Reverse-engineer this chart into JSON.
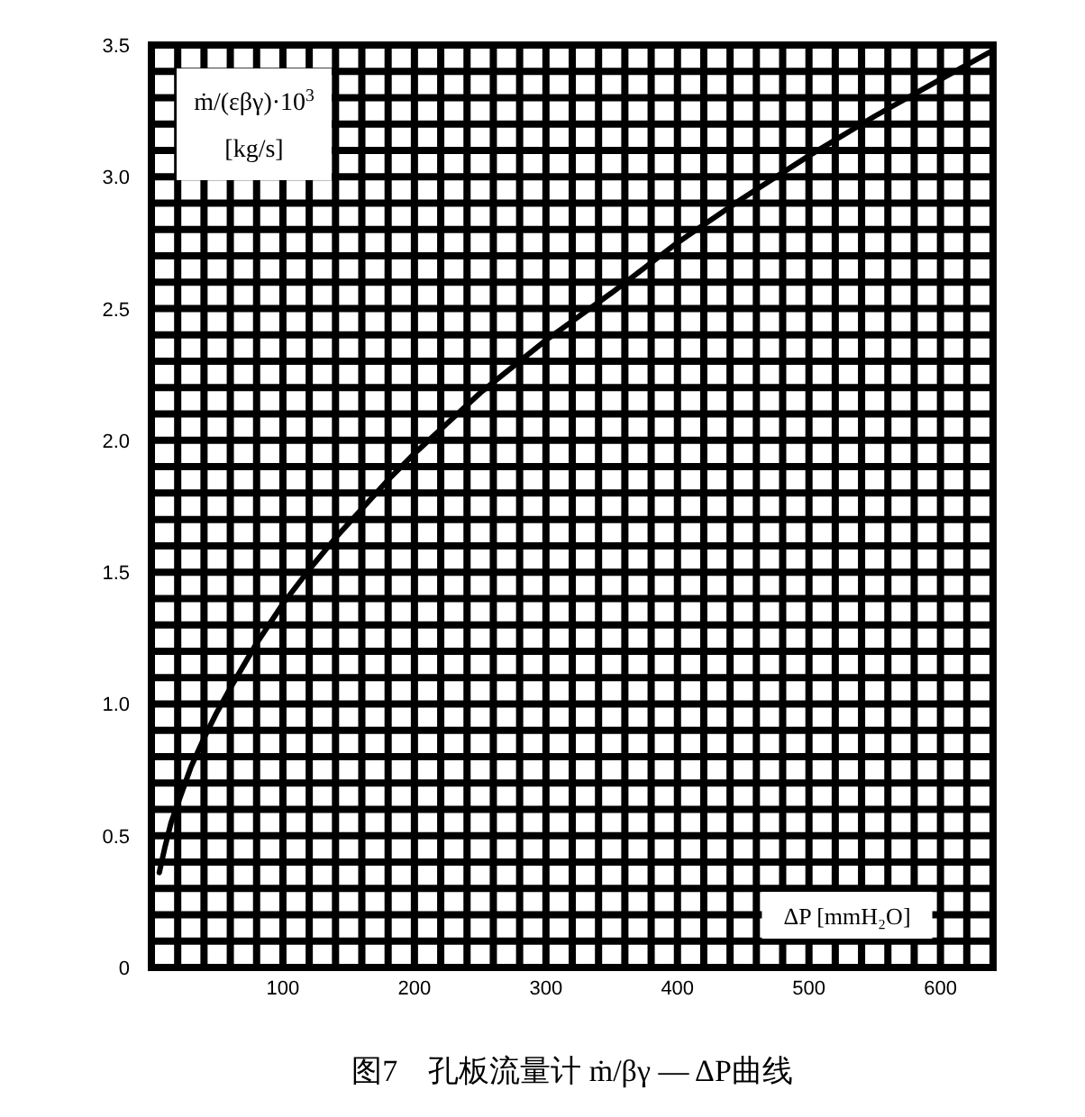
{
  "chart_data": {
    "type": "line",
    "title": "图7　孔板流量计 ṁ/βγ — ΔP曲线",
    "xlabel": "ΔP [mmH₂O]",
    "ylabel": "ṁ/(εβγ)·10$^{3}$ [kg/s]",
    "series": [
      {
        "color": "#000000",
        "x": [
          6,
          10,
          15,
          20,
          25,
          30,
          40,
          50,
          60,
          80,
          100,
          120,
          140,
          160,
          180,
          200,
          250,
          300,
          350,
          400,
          450,
          500,
          550,
          600,
          640
        ],
        "values": [
          0.36,
          0.45,
          0.55,
          0.62,
          0.69,
          0.76,
          0.87,
          0.97,
          1.06,
          1.23,
          1.38,
          1.51,
          1.63,
          1.74,
          1.85,
          1.95,
          2.18,
          2.38,
          2.56,
          2.75,
          2.92,
          3.08,
          3.23,
          3.37,
          3.48
        ]
      }
    ],
    "xlim": [
      0,
      640
    ],
    "ylim": [
      0,
      3.5
    ],
    "xticks": [
      {
        "value": 0,
        "label": null
      },
      {
        "value": 20,
        "label": null
      },
      {
        "value": 40,
        "label": null
      },
      {
        "value": 60,
        "label": null
      },
      {
        "value": 80,
        "label": null
      },
      100,
      {
        "value": 120,
        "label": null
      },
      {
        "value": 140,
        "label": null
      },
      {
        "value": 160,
        "label": null
      },
      {
        "value": 180,
        "label": null
      },
      200,
      {
        "value": 220,
        "label": null
      },
      {
        "value": 240,
        "label": null
      },
      {
        "value": 260,
        "label": null
      },
      {
        "value": 280,
        "label": null
      },
      300,
      {
        "value": 320,
        "label": null
      },
      {
        "value": 340,
        "label": null
      },
      {
        "value": 360,
        "label": null
      },
      {
        "value": 380,
        "label": null
      },
      400,
      {
        "value": 420,
        "label": null
      },
      {
        "value": 440,
        "label": null
      },
      {
        "value": 460,
        "label": null
      },
      {
        "value": 480,
        "label": null
      },
      500,
      {
        "value": 520,
        "label": null
      },
      {
        "value": 540,
        "label": null
      },
      {
        "value": 560,
        "label": null
      },
      {
        "value": 580,
        "label": null
      },
      600,
      {
        "value": 620,
        "label": null
      },
      {
        "value": 640,
        "label": null
      }
    ],
    "yticks": [
      0,
      {
        "value": 0.1,
        "label": null
      },
      {
        "value": 0.2,
        "label": null
      },
      {
        "value": 0.3,
        "label": null
      },
      {
        "value": 0.4,
        "label": null
      },
      0.5,
      {
        "value": 0.6,
        "label": null
      },
      {
        "value": 0.7,
        "label": null
      },
      {
        "value": 0.8,
        "label": null
      },
      {
        "value": 0.9,
        "label": null
      },
      {
        "value": 1,
        "label": "1.0"
      },
      {
        "value": 1.1,
        "label": null
      },
      {
        "value": 1.2,
        "label": null
      },
      {
        "value": 1.3,
        "label": null
      },
      {
        "value": 1.4,
        "label": null
      },
      1.5,
      {
        "value": 1.6,
        "label": null
      },
      {
        "value": 1.7,
        "label": null
      },
      {
        "value": 1.8,
        "label": null
      },
      {
        "value": 1.9,
        "label": null
      },
      {
        "value": 2,
        "label": "2.0"
      },
      {
        "value": 2.1,
        "label": null
      },
      {
        "value": 2.2,
        "label": null
      },
      {
        "value": 2.3,
        "label": null
      },
      {
        "value": 2.4,
        "label": null
      },
      2.5,
      {
        "value": 2.6,
        "label": null
      },
      {
        "value": 2.7,
        "label": null
      },
      {
        "value": 2.8,
        "label": null
      },
      {
        "value": 2.9,
        "label": null
      },
      {
        "value": 3,
        "label": "3.0"
      },
      {
        "value": 3.1,
        "label": null
      },
      {
        "value": 3.2,
        "label": null
      },
      {
        "value": 3.3,
        "label": null
      },
      {
        "value": 3.4,
        "label": null
      },
      3.5
    ],
    "grid": true
  }
}
